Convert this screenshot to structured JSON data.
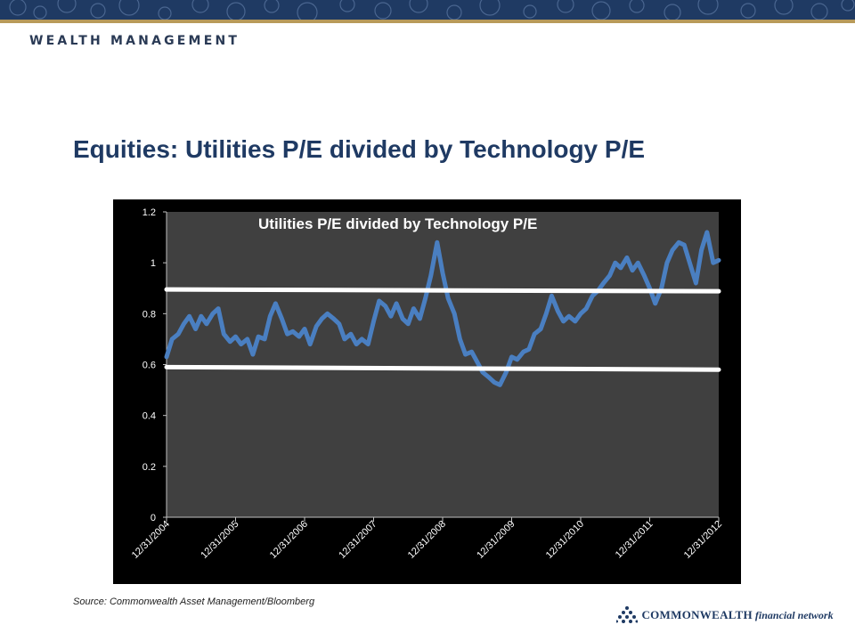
{
  "header": {
    "brand": "WEALTH MANAGEMENT",
    "title": "Equities: Utilities P/E divided by Technology P/E"
  },
  "footer": {
    "source": "Source: Commonwealth  Asset Management/Bloomberg",
    "logo_name": "COMMONWEALTH",
    "logo_sub": "financial network"
  },
  "colors": {
    "banner": "#1f3a63",
    "accent_rule": "#b89a5a",
    "title": "#1f3a63",
    "plot_bg": "#404040",
    "series": "#4a7fc1",
    "band_lines": "#ffffff"
  },
  "chart_data": {
    "type": "line",
    "title": "Utilities P/E divided by Technology P/E",
    "xlabel": "",
    "ylabel": "",
    "ylim": [
      0,
      1.2
    ],
    "yticks": [
      "0",
      "0.2",
      "0.4",
      "0.6",
      "0.8",
      "1",
      "1.2"
    ],
    "ytick_values": [
      0,
      0.2,
      0.4,
      0.6,
      0.8,
      1.0,
      1.2
    ],
    "xticks": [
      "12/31/2004",
      "12/31/2005",
      "12/31/2006",
      "12/31/2007",
      "12/31/2008",
      "12/31/2009",
      "12/31/2010",
      "12/31/2011",
      "12/31/2012"
    ],
    "xlim": [
      2004.0,
      2012.0
    ],
    "grid": false,
    "legend": "none",
    "series": [
      {
        "x": [
          2004.0,
          2004.08,
          2004.17,
          2004.25,
          2004.33,
          2004.42,
          2004.5,
          2004.58,
          2004.67,
          2004.75,
          2004.83,
          2004.92,
          2005.0,
          2005.08,
          2005.17,
          2005.25,
          2005.33,
          2005.42,
          2005.5,
          2005.58,
          2005.67,
          2005.75,
          2005.83,
          2005.92,
          2006.0,
          2006.08,
          2006.17,
          2006.25,
          2006.33,
          2006.42,
          2006.5,
          2006.58,
          2006.67,
          2006.75,
          2006.83,
          2006.92,
          2007.0,
          2007.08,
          2007.17,
          2007.25,
          2007.33,
          2007.42,
          2007.5,
          2007.58,
          2007.67,
          2007.75,
          2007.83,
          2007.92,
          2008.0,
          2008.08,
          2008.17,
          2008.25,
          2008.33,
          2008.42,
          2008.5,
          2008.58,
          2008.67,
          2008.75,
          2008.83,
          2008.92,
          2009.0,
          2009.08,
          2009.17,
          2009.25,
          2009.33,
          2009.42,
          2009.5,
          2009.58,
          2009.67,
          2009.75,
          2009.83,
          2009.92,
          2010.0,
          2010.08,
          2010.17,
          2010.25,
          2010.33,
          2010.42,
          2010.5,
          2010.58,
          2010.67,
          2010.75,
          2010.83,
          2010.92,
          2011.0,
          2011.08,
          2011.17,
          2011.25,
          2011.33,
          2011.42,
          2011.5,
          2011.58,
          2011.67,
          2011.75,
          2011.83,
          2011.92,
          2012.0
        ],
        "values": [
          0.63,
          0.7,
          0.72,
          0.76,
          0.79,
          0.74,
          0.79,
          0.76,
          0.8,
          0.82,
          0.72,
          0.69,
          0.71,
          0.68,
          0.7,
          0.64,
          0.71,
          0.7,
          0.79,
          0.84,
          0.78,
          0.72,
          0.73,
          0.71,
          0.74,
          0.68,
          0.75,
          0.78,
          0.8,
          0.78,
          0.76,
          0.7,
          0.72,
          0.68,
          0.7,
          0.68,
          0.77,
          0.85,
          0.83,
          0.79,
          0.84,
          0.78,
          0.76,
          0.82,
          0.78,
          0.86,
          0.95,
          1.08,
          0.96,
          0.86,
          0.8,
          0.7,
          0.64,
          0.65,
          0.61,
          0.57,
          0.55,
          0.53,
          0.52,
          0.57,
          0.63,
          0.62,
          0.65,
          0.66,
          0.72,
          0.74,
          0.8,
          0.87,
          0.81,
          0.77,
          0.79,
          0.77,
          0.8,
          0.82,
          0.87,
          0.89,
          0.92,
          0.95,
          1.0,
          0.98,
          1.02,
          0.97,
          1.0,
          0.95,
          0.9,
          0.84,
          0.9,
          1.0,
          1.05,
          1.08,
          1.07,
          1.0,
          0.92,
          1.05,
          1.12,
          1.0,
          1.01
        ]
      }
    ],
    "reference_lines": [
      {
        "y_start": 0.895,
        "y_end": 0.888
      },
      {
        "y_start": 0.59,
        "y_end": 0.58
      }
    ]
  }
}
